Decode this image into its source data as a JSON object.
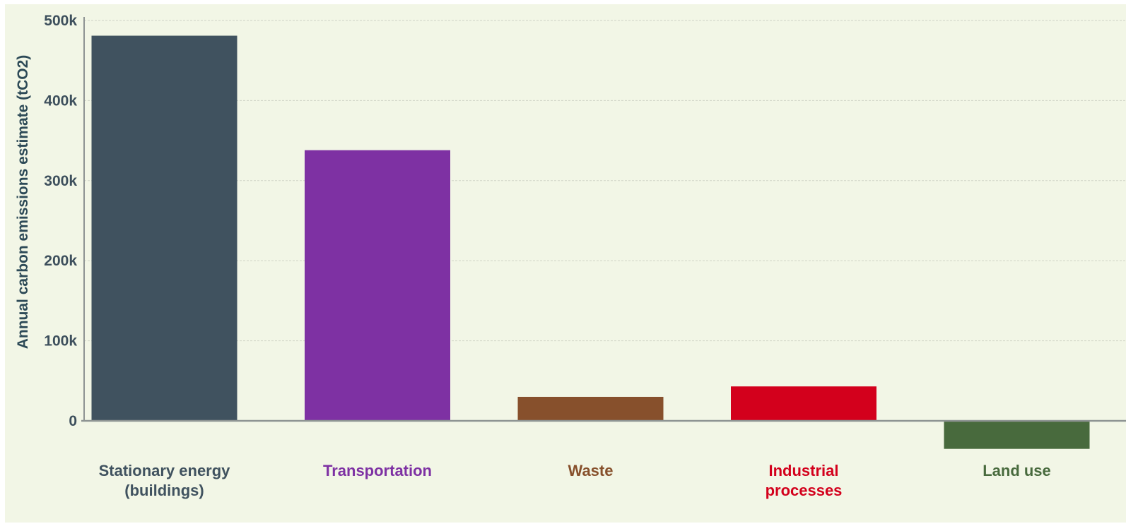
{
  "chart_data": {
    "type": "bar",
    "title": "",
    "xlabel": "",
    "ylabel": "Annual carbon emissions estimate (tCO2)",
    "ylim": [
      -35000,
      500000
    ],
    "yticks": [
      0,
      100000,
      200000,
      300000,
      400000,
      500000
    ],
    "ytick_labels": [
      "0",
      "100k",
      "200k",
      "300k",
      "400k",
      "500k"
    ],
    "grid": true,
    "categories": [
      "Stationary energy (buildings)",
      "Transportation",
      "Waste",
      "Industrial processes",
      "Land use"
    ],
    "category_lines": [
      [
        "Stationary energy",
        "(buildings)"
      ],
      [
        "Transportation"
      ],
      [
        "Waste"
      ],
      [
        "Industrial",
        "processes"
      ],
      [
        "Land use"
      ]
    ],
    "values": [
      481000,
      338000,
      30000,
      43000,
      -35000
    ],
    "colors": [
      "#40525f",
      "#7e31a3",
      "#87502c",
      "#d3001c",
      "#486a3d"
    ],
    "label_colors": [
      "#40525f",
      "#7e31a3",
      "#87502c",
      "#d3001c",
      "#486a3d"
    ]
  }
}
